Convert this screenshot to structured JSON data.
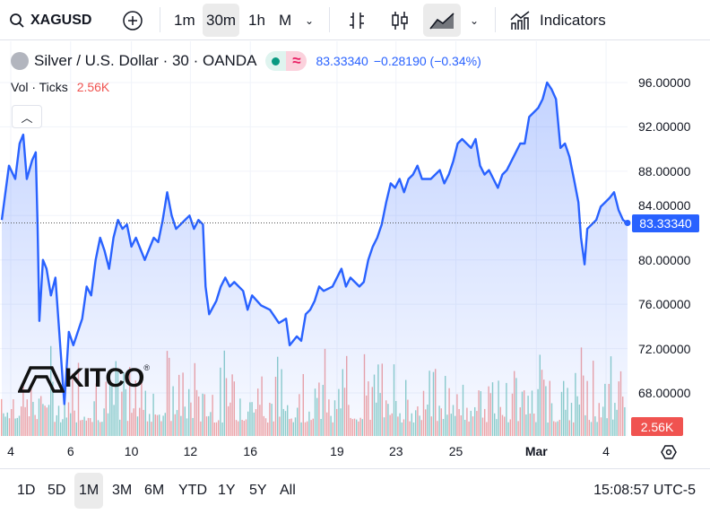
{
  "toolbar": {
    "symbol": "XAGUSD",
    "intervals": [
      "1m",
      "30m",
      "1h",
      "M"
    ],
    "selected_interval": "30m",
    "indicators_label": "Indicators"
  },
  "legend": {
    "title": "Silver / U.S. Dollar · 30 · OANDA",
    "price": "83.33340",
    "change": "−0.28190 (−0.34%)",
    "vol_label": "Vol · Ticks",
    "vol_value": "2.56K"
  },
  "colors": {
    "line": "#2962ff",
    "up": "#26a69a",
    "down": "#ef5350",
    "price_label": "#2962ff",
    "vol_label": "#f05350"
  },
  "price_axis": {
    "current_label": "83.33340",
    "vol_label": "2.56K"
  },
  "range_buttons": [
    "1D",
    "5D",
    "1M",
    "3M",
    "6M",
    "YTD",
    "1Y",
    "5Y",
    "All"
  ],
  "selected_range": "1M",
  "clock": "15:08:57 UTC-5",
  "watermark": "KITCO",
  "chart_data": {
    "type": "area",
    "title": "Silver / U.S. Dollar · 30 · OANDA",
    "ylim": [
      64.2,
      98.4
    ],
    "yticks": [
      "96.00000",
      "92.00000",
      "88.00000",
      "84.00000",
      "80.00000",
      "76.00000",
      "72.00000",
      "68.00000"
    ],
    "ytick_values": [
      96,
      92,
      88,
      84,
      80,
      76,
      72,
      68
    ],
    "xticks": [
      {
        "label": "4",
        "bar": 2
      },
      {
        "label": "6",
        "bar": 15.4
      },
      {
        "label": "10",
        "bar": 29
      },
      {
        "label": "12",
        "bar": 42.2
      },
      {
        "label": "16",
        "bar": 55.6
      },
      {
        "label": "19",
        "bar": 75
      },
      {
        "label": "23",
        "bar": 88.2
      },
      {
        "label": "25",
        "bar": 101.6
      },
      {
        "label": "Mar",
        "bar": 119.6
      },
      {
        "label": "4",
        "bar": 135.2
      }
    ],
    "xmax": 140,
    "last_price": 83.3334,
    "series": [
      [
        0,
        83.6
      ],
      [
        1.6,
        88.5
      ],
      [
        3,
        87.3
      ],
      [
        4,
        90.5
      ],
      [
        4.8,
        91.3
      ],
      [
        5.6,
        87.3
      ],
      [
        6.8,
        89.0
      ],
      [
        7.6,
        89.7
      ],
      [
        8,
        83.2
      ],
      [
        8.4,
        74.5
      ],
      [
        9.2,
        80.0
      ],
      [
        10,
        79.2
      ],
      [
        11,
        76.8
      ],
      [
        12,
        78.4
      ],
      [
        13,
        72.7
      ],
      [
        14,
        67.0
      ],
      [
        15,
        73.5
      ],
      [
        16,
        72.3
      ],
      [
        18,
        74.7
      ],
      [
        19,
        77.6
      ],
      [
        20,
        76.8
      ],
      [
        21,
        80.0
      ],
      [
        22,
        82.0
      ],
      [
        23,
        80.8
      ],
      [
        24,
        79.2
      ],
      [
        25,
        82.0
      ],
      [
        26,
        83.6
      ],
      [
        27,
        82.8
      ],
      [
        28,
        83.2
      ],
      [
        29,
        81.2
      ],
      [
        30,
        82.0
      ],
      [
        32,
        80.0
      ],
      [
        34,
        82.0
      ],
      [
        35,
        81.6
      ],
      [
        36,
        83.6
      ],
      [
        37,
        86.1
      ],
      [
        38,
        84.0
      ],
      [
        39,
        82.8
      ],
      [
        40,
        83.2
      ],
      [
        41,
        83.6
      ],
      [
        42,
        84.0
      ],
      [
        43,
        82.8
      ],
      [
        44,
        83.6
      ],
      [
        45,
        83.2
      ],
      [
        45.6,
        77.6
      ],
      [
        46.4,
        75.1
      ],
      [
        48,
        76.3
      ],
      [
        49,
        77.6
      ],
      [
        50,
        78.4
      ],
      [
        51,
        77.6
      ],
      [
        52,
        78.0
      ],
      [
        54,
        77.2
      ],
      [
        55,
        75.5
      ],
      [
        56,
        76.8
      ],
      [
        58,
        75.9
      ],
      [
        60,
        75.5
      ],
      [
        62,
        74.3
      ],
      [
        63.6,
        74.7
      ],
      [
        64.4,
        72.3
      ],
      [
        66,
        73.1
      ],
      [
        67,
        72.7
      ],
      [
        68,
        75.1
      ],
      [
        69,
        75.5
      ],
      [
        70,
        76.3
      ],
      [
        71,
        77.6
      ],
      [
        72,
        77.2
      ],
      [
        74,
        77.6
      ],
      [
        76,
        79.2
      ],
      [
        77,
        77.6
      ],
      [
        78,
        78.4
      ],
      [
        80,
        77.6
      ],
      [
        81,
        78.0
      ],
      [
        82,
        80.0
      ],
      [
        83,
        81.2
      ],
      [
        84,
        82.0
      ],
      [
        85,
        83.2
      ],
      [
        86,
        85.2
      ],
      [
        87,
        86.9
      ],
      [
        88,
        86.5
      ],
      [
        89,
        87.3
      ],
      [
        90,
        86.1
      ],
      [
        91,
        87.3
      ],
      [
        92,
        87.7
      ],
      [
        93,
        88.5
      ],
      [
        94,
        87.3
      ],
      [
        96,
        87.3
      ],
      [
        98,
        88.1
      ],
      [
        99,
        86.9
      ],
      [
        100,
        87.7
      ],
      [
        101,
        88.9
      ],
      [
        102,
        90.5
      ],
      [
        103,
        90.9
      ],
      [
        104,
        90.5
      ],
      [
        105,
        90.1
      ],
      [
        106,
        90.9
      ],
      [
        107,
        88.5
      ],
      [
        108,
        87.7
      ],
      [
        109,
        88.1
      ],
      [
        110,
        87.3
      ],
      [
        111,
        86.5
      ],
      [
        112,
        87.7
      ],
      [
        113,
        88.1
      ],
      [
        114,
        88.9
      ],
      [
        115,
        89.7
      ],
      [
        116,
        90.5
      ],
      [
        117,
        90.5
      ],
      [
        118,
        92.9
      ],
      [
        119,
        93.3
      ],
      [
        120,
        93.7
      ],
      [
        121,
        94.5
      ],
      [
        122,
        96.0
      ],
      [
        123,
        95.4
      ],
      [
        124,
        94.5
      ],
      [
        125,
        90.1
      ],
      [
        126,
        90.5
      ],
      [
        127,
        89.3
      ],
      [
        128,
        87.3
      ],
      [
        129,
        85.2
      ],
      [
        129.6,
        82.0
      ],
      [
        130.4,
        79.6
      ],
      [
        131,
        82.8
      ],
      [
        132,
        83.2
      ],
      [
        133,
        83.6
      ],
      [
        134,
        84.8
      ],
      [
        135,
        85.2
      ],
      [
        136,
        85.6
      ],
      [
        137,
        86.1
      ],
      [
        138,
        84.5
      ],
      [
        139,
        83.6
      ],
      [
        140,
        83.33
      ]
    ]
  }
}
